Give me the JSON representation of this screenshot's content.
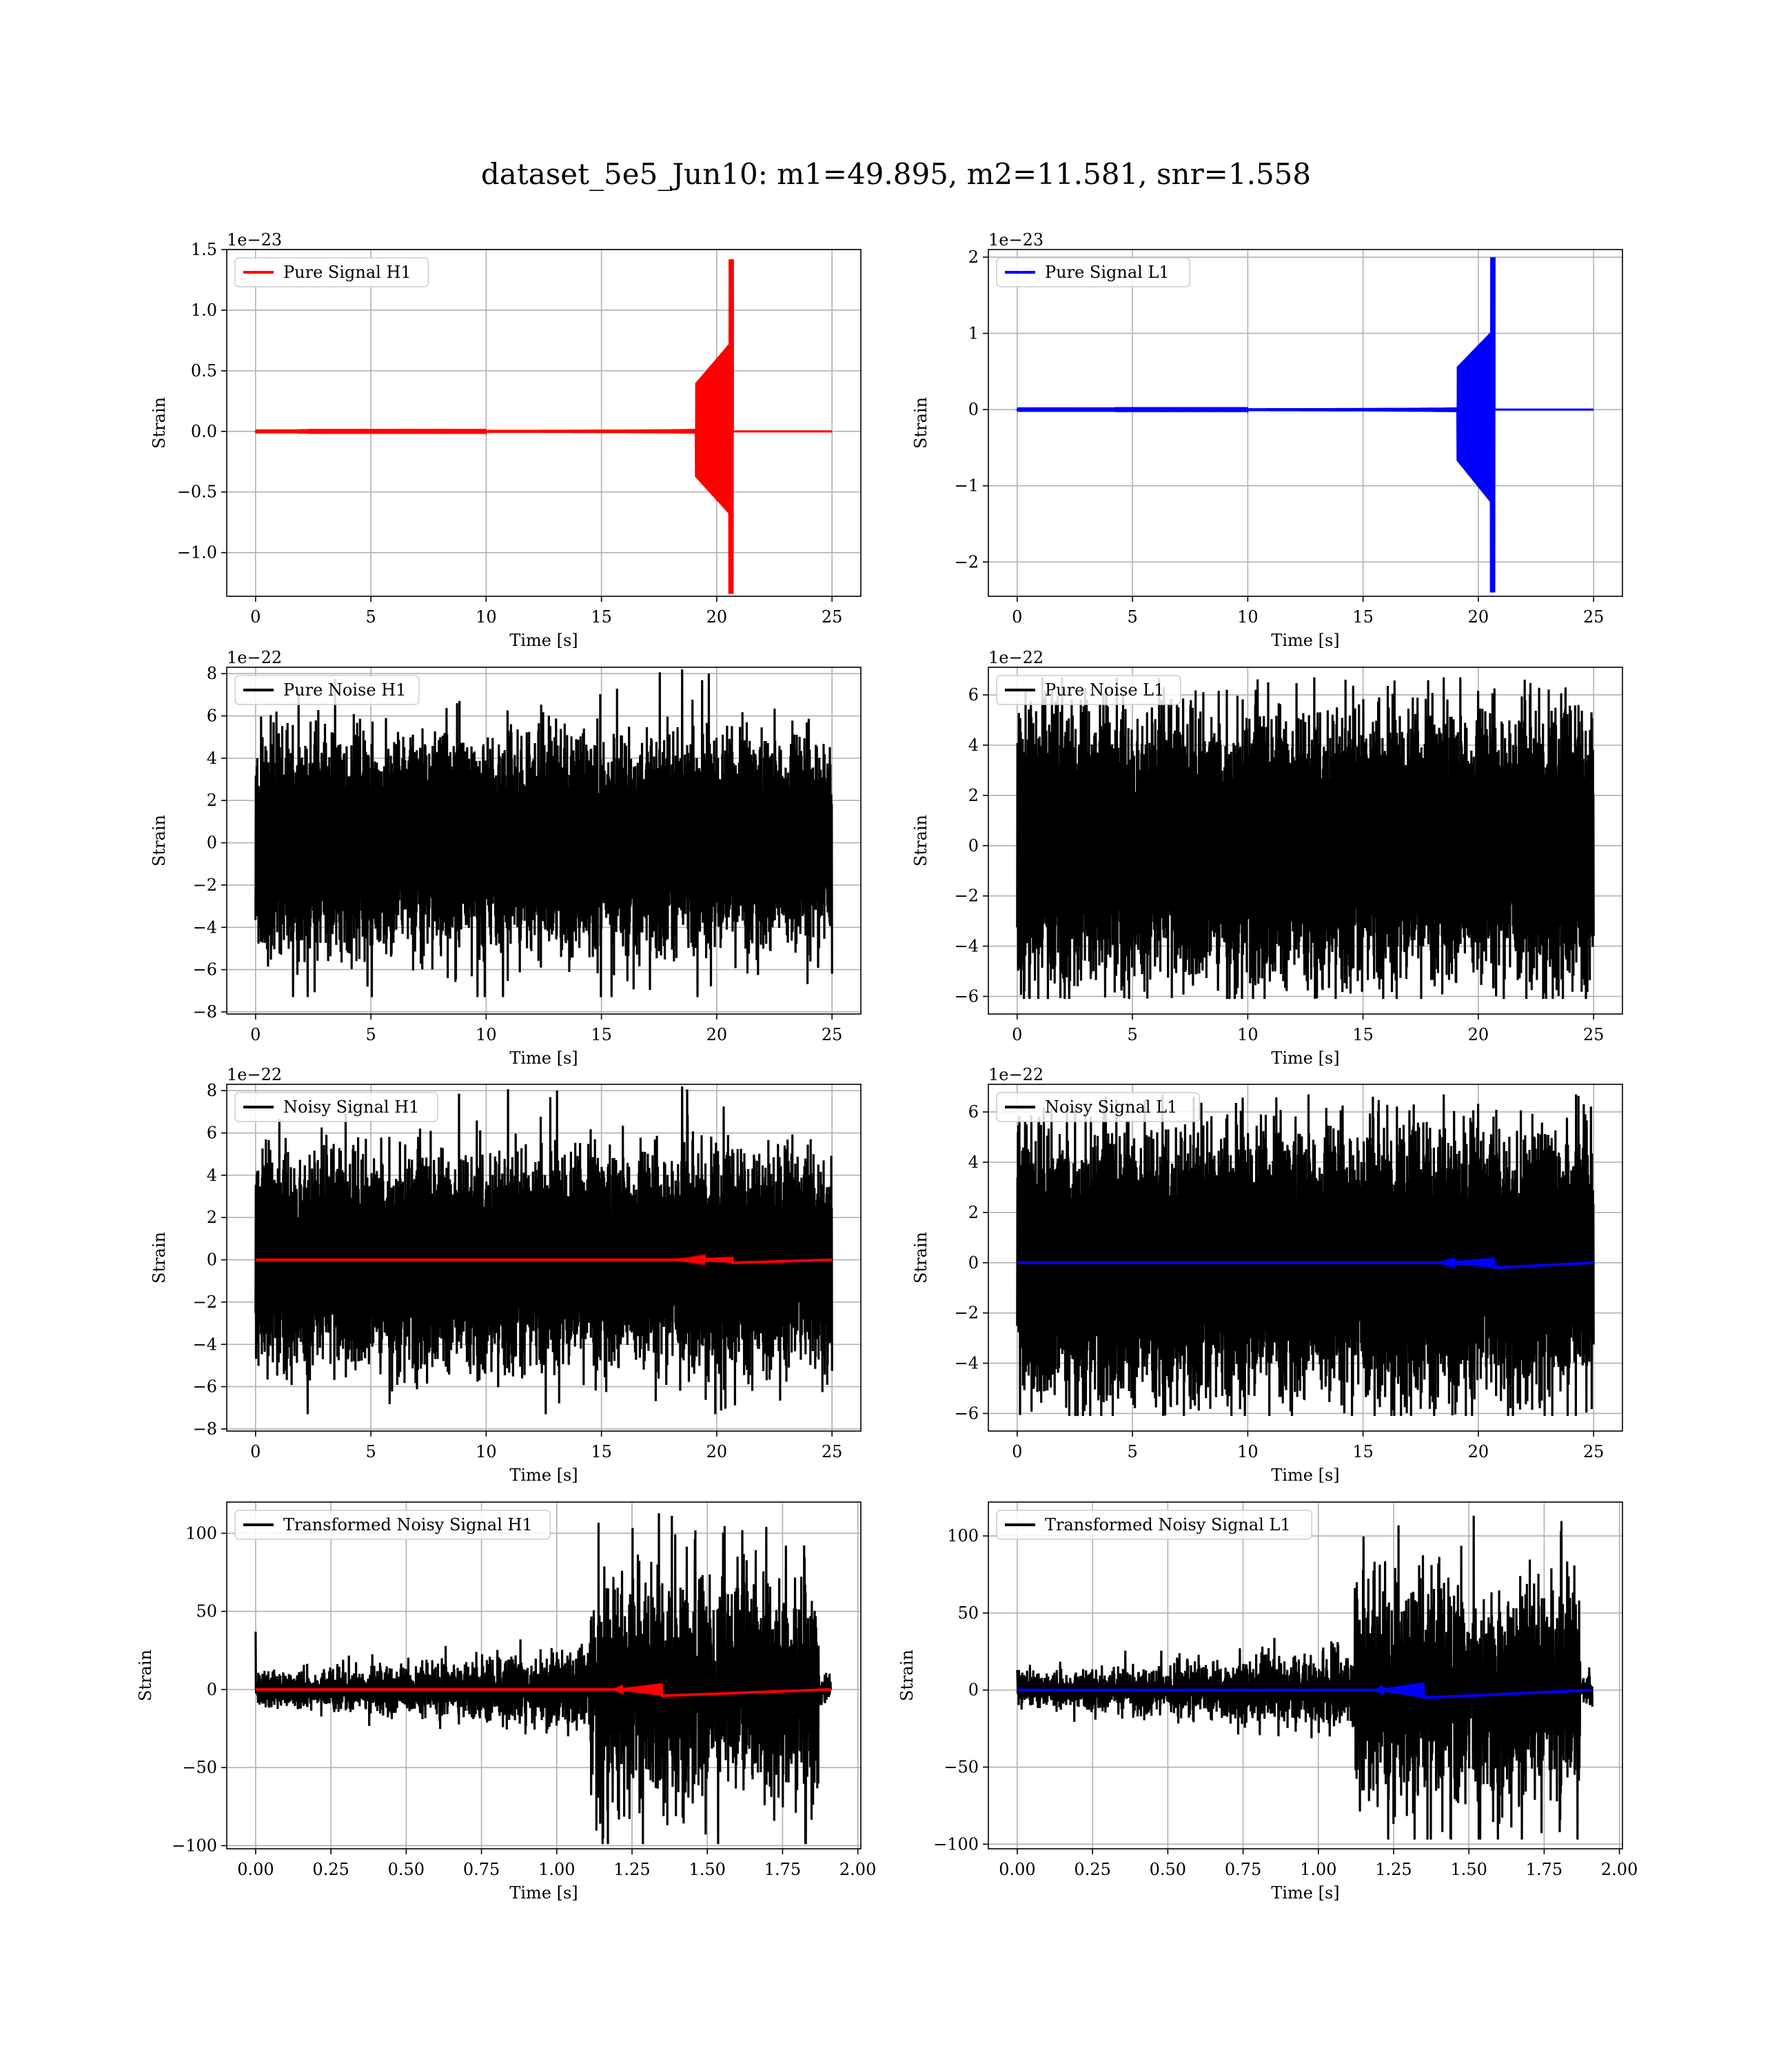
{
  "title": "dataset_5e5_Jun10: m1=49.895, m2=11.581, snr=1.558",
  "chart_data": [
    {
      "type": "line",
      "panel": "pure-signal-h1",
      "xlabel": "Time [s]",
      "ylabel": "Strain",
      "scale_label": "1e−23",
      "xlim": [
        -1.25,
        26.25
      ],
      "ylim": [
        -1.36,
        1.5
      ],
      "xticks": [
        0,
        5,
        10,
        15,
        20,
        25
      ],
      "xtick_labels": [
        "0",
        "5",
        "10",
        "15",
        "20",
        "25"
      ],
      "yticks": [
        -1.0,
        -0.5,
        0.0,
        0.5,
        1.0,
        1.5
      ],
      "ytick_labels": [
        "−1.0",
        "−0.5",
        "0.0",
        "0.5",
        "1.0",
        "1.5"
      ],
      "grid": true,
      "legend": "top-left",
      "series": [
        {
          "name": "Pure Signal H1",
          "color": "#ff0000",
          "kind": "chirp",
          "t_start": 0,
          "t_merger": 20.7,
          "t_end": 25,
          "peak_pos": 1.42,
          "peak_neg": -1.34
        }
      ]
    },
    {
      "type": "line",
      "panel": "pure-signal-l1",
      "xlabel": "Time [s]",
      "ylabel": "Strain",
      "scale_label": "1e−23",
      "xlim": [
        -1.25,
        26.25
      ],
      "ylim": [
        -2.45,
        2.1
      ],
      "xticks": [
        0,
        5,
        10,
        15,
        20,
        25
      ],
      "xtick_labels": [
        "0",
        "5",
        "10",
        "15",
        "20",
        "25"
      ],
      "yticks": [
        -2,
        -1,
        0,
        1,
        2
      ],
      "ytick_labels": [
        "−2",
        "−1",
        "0",
        "1",
        "2"
      ],
      "grid": true,
      "legend": "top-left",
      "series": [
        {
          "name": "Pure Signal L1",
          "color": "#0000ff",
          "kind": "chirp",
          "t_start": 0,
          "t_merger": 20.7,
          "t_end": 25,
          "peak_pos": 2.0,
          "peak_neg": -2.4
        }
      ]
    },
    {
      "type": "line",
      "panel": "pure-noise-h1",
      "xlabel": "Time [s]",
      "ylabel": "Strain",
      "scale_label": "1e−22",
      "xlim": [
        -1.25,
        26.25
      ],
      "ylim": [
        -8.1,
        8.3
      ],
      "xticks": [
        0,
        5,
        10,
        15,
        20,
        25
      ],
      "xtick_labels": [
        "0",
        "5",
        "10",
        "15",
        "20",
        "25"
      ],
      "yticks": [
        -8,
        -6,
        -4,
        -2,
        0,
        2,
        4,
        6,
        8
      ],
      "ytick_labels": [
        "−8",
        "−6",
        "−4",
        "−2",
        "0",
        "2",
        "4",
        "6",
        "8"
      ],
      "grid": true,
      "legend": "top-left",
      "series": [
        {
          "name": "Pure Noise H1",
          "color": "#000000",
          "kind": "noise",
          "t_start": 0,
          "t_end": 25,
          "band": 3.0,
          "max": 8.2,
          "min": -7.3
        }
      ]
    },
    {
      "type": "line",
      "panel": "pure-noise-l1",
      "xlabel": "Time [s]",
      "ylabel": "Strain",
      "scale_label": "1e−22",
      "xlim": [
        -1.25,
        26.25
      ],
      "ylim": [
        -6.7,
        7.1
      ],
      "xticks": [
        0,
        5,
        10,
        15,
        20,
        25
      ],
      "xtick_labels": [
        "0",
        "5",
        "10",
        "15",
        "20",
        "25"
      ],
      "yticks": [
        -6,
        -4,
        -2,
        0,
        2,
        4,
        6
      ],
      "ytick_labels": [
        "−6",
        "−4",
        "−2",
        "0",
        "2",
        "4",
        "6"
      ],
      "grid": true,
      "legend": "top-left",
      "series": [
        {
          "name": "Pure Noise L1",
          "color": "#000000",
          "kind": "noise",
          "t_start": 0,
          "t_end": 25,
          "band": 3.2,
          "max": 6.7,
          "min": -6.1
        }
      ]
    },
    {
      "type": "line",
      "panel": "noisy-signal-h1",
      "xlabel": "Time [s]",
      "ylabel": "Strain",
      "scale_label": "1e−22",
      "xlim": [
        -1.25,
        26.25
      ],
      "ylim": [
        -8.1,
        8.3
      ],
      "xticks": [
        0,
        5,
        10,
        15,
        20,
        25
      ],
      "xtick_labels": [
        "0",
        "5",
        "10",
        "15",
        "20",
        "25"
      ],
      "yticks": [
        -8,
        -6,
        -4,
        -2,
        0,
        2,
        4,
        6,
        8
      ],
      "ytick_labels": [
        "−8",
        "−6",
        "−4",
        "−2",
        "0",
        "2",
        "4",
        "6",
        "8"
      ],
      "grid": true,
      "legend": "top-left",
      "series": [
        {
          "name": "Noisy Signal H1",
          "color": "#000000",
          "kind": "noise",
          "t_start": 0,
          "t_end": 25,
          "band": 3.0,
          "max": 8.2,
          "min": -7.3
        },
        {
          "color": "#ff0000",
          "kind": "flat-chirp",
          "t_start": 0,
          "t_merger": 20.7,
          "t_end": 25,
          "amp": 0.14
        }
      ]
    },
    {
      "type": "line",
      "panel": "noisy-signal-l1",
      "xlabel": "Time [s]",
      "ylabel": "Strain",
      "scale_label": "1e−22",
      "xlim": [
        -1.25,
        26.25
      ],
      "ylim": [
        -6.7,
        7.1
      ],
      "xticks": [
        0,
        5,
        10,
        15,
        20,
        25
      ],
      "xtick_labels": [
        "0",
        "5",
        "10",
        "15",
        "20",
        "25"
      ],
      "yticks": [
        -6,
        -4,
        -2,
        0,
        2,
        4,
        6
      ],
      "ytick_labels": [
        "−6",
        "−4",
        "−2",
        "0",
        "2",
        "4",
        "6"
      ],
      "grid": true,
      "legend": "top-left",
      "series": [
        {
          "name": "Noisy Signal L1",
          "color": "#000000",
          "kind": "noise",
          "t_start": 0,
          "t_end": 25,
          "band": 3.2,
          "max": 6.7,
          "min": -6.1
        },
        {
          "color": "#0000ff",
          "kind": "flat-chirp",
          "t_start": 0,
          "t_merger": 20.7,
          "t_end": 25,
          "amp": 0.2
        }
      ]
    },
    {
      "type": "line",
      "panel": "transformed-noisy-signal-h1",
      "xlabel": "Time [s]",
      "ylabel": "Strain",
      "scale_label": "",
      "xlim": [
        -0.096,
        2.01
      ],
      "ylim": [
        -102,
        120
      ],
      "xticks": [
        0,
        0.25,
        0.5,
        0.75,
        1.0,
        1.25,
        1.5,
        1.75,
        2.0
      ],
      "xtick_labels": [
        "0.00",
        "0.25",
        "0.50",
        "0.75",
        "1.00",
        "1.25",
        "1.50",
        "1.75",
        "2.00"
      ],
      "yticks": [
        -100,
        -50,
        0,
        50,
        100
      ],
      "ytick_labels": [
        "−100",
        "−50",
        "0",
        "50",
        "100"
      ],
      "grid": true,
      "legend": "top-left",
      "series": [
        {
          "name": "Transformed Noisy Signal H1",
          "color": "#000000",
          "kind": "burst",
          "t_start": 0,
          "t_jump": 1.11,
          "t_drop": 1.87,
          "t_end": 1.91,
          "pre_band": 12,
          "post_band": 45,
          "max": 113,
          "min": -99,
          "spike_t0": 37
        },
        {
          "color": "#ff0000",
          "kind": "flat-chirp",
          "t_start": 0,
          "t_merger": 1.35,
          "t_end": 1.91,
          "amp": 4
        }
      ]
    },
    {
      "type": "line",
      "panel": "transformed-noisy-signal-l1",
      "xlabel": "Time [s]",
      "ylabel": "Strain",
      "scale_label": "",
      "xlim": [
        -0.096,
        2.01
      ],
      "ylim": [
        -103,
        122
      ],
      "xticks": [
        0,
        0.25,
        0.5,
        0.75,
        1.0,
        1.25,
        1.5,
        1.75,
        2.0
      ],
      "xtick_labels": [
        "0.00",
        "0.25",
        "0.50",
        "0.75",
        "1.00",
        "1.25",
        "1.50",
        "1.75",
        "2.00"
      ],
      "yticks": [
        -100,
        -50,
        0,
        50,
        100
      ],
      "ytick_labels": [
        "−100",
        "−50",
        "0",
        "50",
        "100"
      ],
      "grid": true,
      "legend": "top-left",
      "series": [
        {
          "name": "Transformed Noisy Signal L1",
          "color": "#000000",
          "kind": "burst",
          "t_start": 0,
          "t_jump": 1.12,
          "t_drop": 1.87,
          "t_end": 1.91,
          "pre_band": 12,
          "post_band": 45,
          "max": 114,
          "min": -97,
          "spike_t0": 13
        },
        {
          "color": "#0000ff",
          "kind": "flat-chirp",
          "t_start": 0,
          "t_merger": 1.35,
          "t_end": 1.91,
          "amp": 5
        }
      ]
    }
  ]
}
